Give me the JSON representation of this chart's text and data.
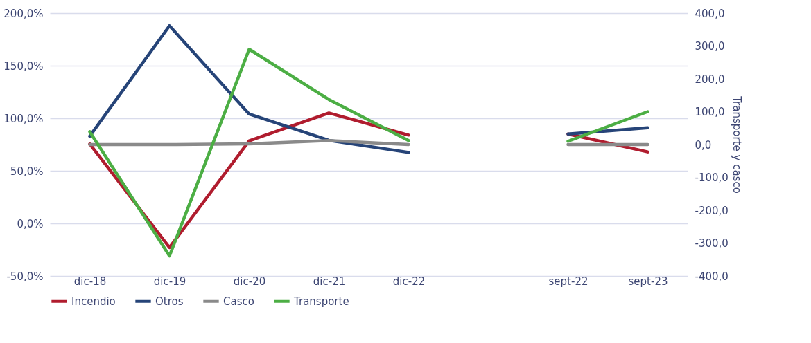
{
  "chart_data": {
    "type": "line",
    "y2label": "Transporte y casco",
    "categories": [
      "dic-18",
      "dic-19",
      "dic-20",
      "dic-21",
      "dic-22",
      null,
      "sept-22",
      "sept-23"
    ],
    "series": [
      {
        "name": "Incendio",
        "color": "#b01c2e",
        "values": [
          75.5,
          -23,
          78.5,
          105,
          84,
          null,
          85,
          68
        ]
      },
      {
        "name": "Otros",
        "color": "#264478",
        "values": [
          83,
          188,
          104,
          79,
          67.5,
          null,
          85,
          91
        ]
      },
      {
        "name": "Casco",
        "color": "#8a8a8a",
        "axis": "y2",
        "values": [
          0,
          0,
          2,
          12,
          0,
          null,
          0,
          0
        ]
      },
      {
        "name": "Transporte",
        "color": "#4cae44",
        "axis": "y2",
        "values": [
          39,
          -339,
          290,
          137,
          12,
          null,
          10,
          100
        ]
      }
    ],
    "ylim": [
      -50,
      200
    ],
    "yticks": [
      {
        "value": -50,
        "label": "-50,0%"
      },
      {
        "value": 0,
        "label": "0,0%"
      },
      {
        "value": 50,
        "label": "50,0%"
      },
      {
        "value": 100,
        "label": "100,0%"
      },
      {
        "value": 150,
        "label": "150,0%"
      },
      {
        "value": 200,
        "label": "200,0%"
      }
    ],
    "y2lim": [
      -400,
      400
    ],
    "y2ticks": [
      {
        "value": -400,
        "label": "-400,0"
      },
      {
        "value": -300,
        "label": "-300,0"
      },
      {
        "value": -200,
        "label": "-200,0"
      },
      {
        "value": -100,
        "label": "-100,0"
      },
      {
        "value": 0,
        "label": "0,0"
      },
      {
        "value": 100,
        "label": "100,0"
      },
      {
        "value": 200,
        "label": "200,0"
      },
      {
        "value": 300,
        "label": "300,0"
      },
      {
        "value": 400,
        "label": "400,0"
      }
    ],
    "grid": true,
    "legend": "bottom",
    "line_style": "solid",
    "marker": "none"
  }
}
